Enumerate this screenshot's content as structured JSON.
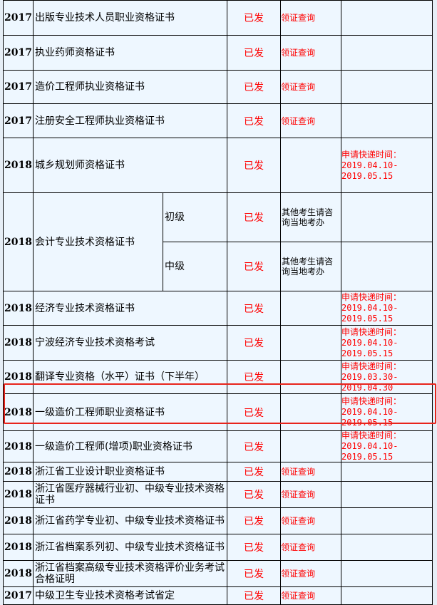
{
  "rows": [
    {
      "year": "2017",
      "name": "出版专业技术人员职业资格证书",
      "status": "已发",
      "link": "领证查询",
      "note": []
    },
    {
      "year": "2017",
      "name": "执业药师资格证书",
      "status": "已发",
      "link": "领证查询",
      "note": []
    },
    {
      "year": "2017",
      "name": "造价工程师执业资格证书",
      "status": "已发",
      "link": "领证查询",
      "note": []
    },
    {
      "year": "2017",
      "name": "注册安全工程师执业资格证书",
      "status": "已发",
      "link": "领证查询",
      "note": []
    },
    {
      "year": "2018",
      "name": "城乡规划师资格证书",
      "status": "已发",
      "link": "",
      "note": [
        "申请快递时间：",
        "2019.04.10-",
        "2019.05.15"
      ]
    },
    {
      "year": "2018",
      "name": "会计专业技术资格证书",
      "levels": [
        {
          "level": "初级",
          "status": "已发",
          "link": "其他考生请咨询当地考办",
          "note": []
        },
        {
          "level": "中级",
          "status": "已发",
          "link": "其他考生请咨询当地考办",
          "note": []
        }
      ]
    },
    {
      "year": "2018",
      "name": "经济专业技术资格证书",
      "status": "已发",
      "link": "",
      "note": [
        "申请快递时间：",
        "2019.04.10-",
        "2019.05.15"
      ]
    },
    {
      "year": "2018",
      "name": "宁波经济专业技术资格考试",
      "status": "已发",
      "link": "",
      "note": [
        "申请快递时间：",
        "2019.04.10-",
        "2019.05.15"
      ]
    },
    {
      "year": "2018",
      "name": "翻译专业资格（水平）证书（下半年）",
      "status": "已发",
      "link": "",
      "note": [
        "申请快递时间：",
        "2019.03.30-",
        "2019.04.30"
      ]
    },
    {
      "year": "2018",
      "name": "一级造价工程师职业资格证书",
      "status": "已发",
      "link": "",
      "note": [
        "申请快递时间：",
        "2019.04.10-",
        "2019.05.15"
      ],
      "highlighted": true
    },
    {
      "year": "2018",
      "name": "一级造价工程师(增项)职业资格证书",
      "status": "已发",
      "link": "",
      "note": [
        "申请快递时间：",
        "2019.04.10-",
        "2019.05.15"
      ]
    },
    {
      "year": "2018",
      "name": "浙江省工业设计职业资格证书",
      "status": "已发",
      "link": "领证查询",
      "note": []
    },
    {
      "year": "2018",
      "name": "浙江省医疗器械行业初、中级专业技术资格证书",
      "status": "已发",
      "link": "领证查询",
      "note": []
    },
    {
      "year": "2018",
      "name": "浙江省药学专业初、中级专业技术资格证书",
      "status": "已发",
      "link": "领证查询",
      "note": []
    },
    {
      "year": "2018",
      "name": "浙江省档案系列初、中级专业技术资格证书",
      "status": "已发",
      "link": "领证查询",
      "note": []
    },
    {
      "year": "2018",
      "name": "浙江省档案高级专业技术资格评价业务考试合格证明",
      "status": "已发",
      "link": "领证查询",
      "note": []
    },
    {
      "year": "2017",
      "name": "中级卫生专业技术资格考试省定",
      "status": "已发",
      "link": "领证查询",
      "note": []
    }
  ],
  "colors": {
    "accent": "#ff0000",
    "highlight_border": "#e8241c",
    "cell_bg": "#eef7ff"
  }
}
